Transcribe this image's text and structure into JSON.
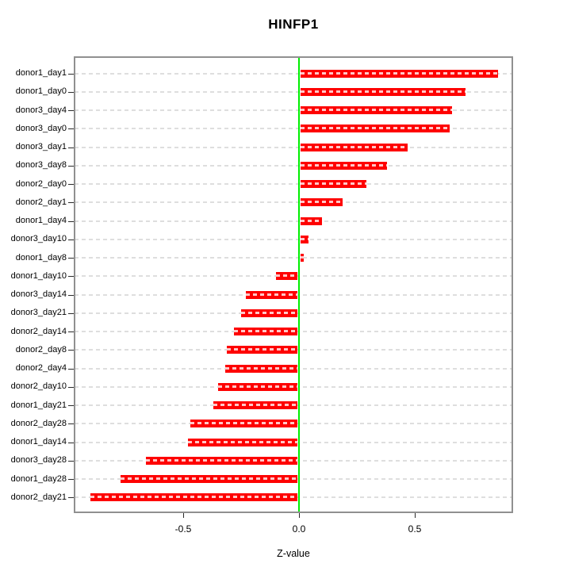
{
  "chart_data": {
    "type": "bar",
    "orientation": "horizontal",
    "title": "HINFP1",
    "xlabel": "Z-value",
    "ylabel": "",
    "categories": [
      "donor1_day1",
      "donor1_day0",
      "donor3_day4",
      "donor3_day0",
      "donor3_day1",
      "donor3_day8",
      "donor2_day0",
      "donor2_day1",
      "donor1_day4",
      "donor3_day10",
      "donor1_day8",
      "donor1_day10",
      "donor3_day14",
      "donor3_day21",
      "donor2_day14",
      "donor2_day8",
      "donor2_day4",
      "donor2_day10",
      "donor1_day21",
      "donor2_day28",
      "donor1_day14",
      "donor3_day28",
      "donor1_day28",
      "donor2_day21"
    ],
    "values": [
      0.86,
      0.72,
      0.66,
      0.65,
      0.47,
      0.38,
      0.29,
      0.19,
      0.1,
      0.04,
      0.02,
      -0.1,
      -0.23,
      -0.25,
      -0.28,
      -0.31,
      -0.32,
      -0.35,
      -0.37,
      -0.47,
      -0.48,
      -0.66,
      -0.77,
      -0.9
    ],
    "xticks": [
      -0.5,
      0.0,
      0.5
    ],
    "xtick_labels": [
      "-0.5",
      "0.0",
      "0.5"
    ],
    "xlim": [
      -0.97,
      0.93
    ],
    "grid": "horizontal-dashed-per-row",
    "legend": "none",
    "colors": {
      "bar": "#fe0000",
      "zero_line": "#00ee00",
      "gridline": "#dedede",
      "box_border": "#909090",
      "text": "#000000",
      "background": "#ffffff"
    }
  }
}
